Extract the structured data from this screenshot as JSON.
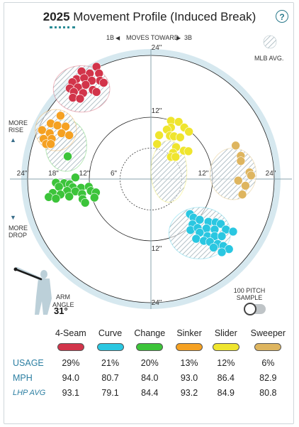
{
  "header": {
    "year": "2025",
    "title": "Movement Profile (Induced Break)",
    "help_symbol": "?"
  },
  "direction": {
    "left": "1B",
    "center": "MOVES TOWARD",
    "right": "3B",
    "left_arrow": "◀",
    "right_arrow": "▶"
  },
  "legend": {
    "mlb_avg": "MLB AVG."
  },
  "side_labels": {
    "rise_line1": "MORE",
    "rise_line2": "RISE",
    "rise_arrow": "▲",
    "drop_arrow": "▼",
    "drop_line1": "MORE",
    "drop_line2": "DROP"
  },
  "arm_angle": {
    "label_line1": "ARM",
    "label_line2": "ANGLE",
    "value": "31°"
  },
  "sample_toggle": {
    "label_line1": "100 PITCH",
    "label_line2": "SAMPLE",
    "on": false
  },
  "chart_data": {
    "type": "scatter",
    "rings": [
      6,
      12,
      24
    ],
    "ring_labels": {
      "top": [
        "24\"",
        "12\""
      ],
      "bottom": [
        "12\"",
        "24\""
      ],
      "left": [
        "24\"",
        "18\"",
        "12\"",
        "6\""
      ],
      "right": [
        "12\"",
        "24\""
      ]
    },
    "series": [
      {
        "name": "4-Seam",
        "color": "#d2344a",
        "mlb_avg": {
          "x": -13.5,
          "y": 17.5,
          "rx": 5.5,
          "ry": 4.5
        },
        "points": [
          [
            -10.6,
            21.8
          ],
          [
            -10.1,
            20.5
          ],
          [
            -11.9,
            20.5
          ],
          [
            -13.5,
            20.9
          ],
          [
            -14.5,
            19.4
          ],
          [
            -15.3,
            18.8
          ],
          [
            -13.0,
            19.6
          ],
          [
            -11.5,
            19.1
          ],
          [
            -9.9,
            19.1
          ],
          [
            -9.2,
            18.7
          ],
          [
            -12.7,
            18.3
          ],
          [
            -14.2,
            17.8
          ],
          [
            -15.8,
            17.6
          ],
          [
            -15.0,
            16.9
          ],
          [
            -13.2,
            16.7
          ],
          [
            -11.3,
            17.3
          ],
          [
            -10.6,
            16.9
          ],
          [
            -15.2,
            15.8
          ],
          [
            -13.8,
            15.6
          ]
        ]
      },
      {
        "name": "Curve",
        "color": "#2ac7e1",
        "mlb_avg": {
          "x": 9.5,
          "y": -10.5,
          "rx": 6,
          "ry": 5
        },
        "points": [
          [
            7.6,
            -6.8
          ],
          [
            8.3,
            -7.5
          ],
          [
            9.5,
            -7.9
          ],
          [
            8.1,
            -8.8
          ],
          [
            11.2,
            -8.3
          ],
          [
            12.6,
            -8.4
          ],
          [
            13.6,
            -8.7
          ],
          [
            7.7,
            -9.9
          ],
          [
            9.1,
            -9.5
          ],
          [
            10.8,
            -9.6
          ],
          [
            12.4,
            -9.8
          ],
          [
            14.6,
            -9.8
          ],
          [
            16.0,
            -10.2
          ],
          [
            9.5,
            -10.4
          ],
          [
            11.0,
            -11.1
          ],
          [
            12.4,
            -11.1
          ],
          [
            13.8,
            -11.1
          ],
          [
            8.8,
            -11.6
          ],
          [
            10.3,
            -12.0
          ],
          [
            11.5,
            -12.2
          ],
          [
            13.0,
            -12.6
          ],
          [
            14.1,
            -13.0
          ],
          [
            12.2,
            -13.3
          ],
          [
            15.2,
            -13.6
          ],
          [
            13.8,
            -14.2
          ]
        ]
      },
      {
        "name": "Change",
        "color": "#3cc43a",
        "mlb_avg": {
          "x": -16.5,
          "y": 6.5,
          "rx": 4,
          "ry": 5
        },
        "points": [
          [
            -16.2,
            4.4
          ],
          [
            -14.7,
            0.3
          ],
          [
            -18.5,
            -0.7
          ],
          [
            -16.9,
            -0.8
          ],
          [
            -15.8,
            -1.0
          ],
          [
            -17.9,
            -1.5
          ],
          [
            -15.2,
            -1.6
          ],
          [
            -13.6,
            -1.7
          ],
          [
            -12.1,
            -1.5
          ],
          [
            -11.7,
            -2.3
          ],
          [
            -16.3,
            -2.3
          ],
          [
            -14.7,
            -2.4
          ],
          [
            -19.1,
            -2.7
          ],
          [
            -17.6,
            -3.0
          ],
          [
            -10.7,
            -2.6
          ],
          [
            -13.4,
            -2.9
          ],
          [
            -15.9,
            -3.4
          ],
          [
            -19.9,
            -3.5
          ],
          [
            -18.5,
            -3.8
          ],
          [
            -13.3,
            -3.9
          ],
          [
            -11.0,
            -3.6
          ],
          [
            -12.8,
            -4.6
          ]
        ]
      },
      {
        "name": "Sinker",
        "color": "#f5a122",
        "mlb_avg": {
          "x": -18.5,
          "y": 9.5,
          "rx": 4,
          "ry": 4
        },
        "points": [
          [
            -17.6,
            12.3
          ],
          [
            -19.5,
            10.8
          ],
          [
            -18.2,
            10.4
          ],
          [
            -16.6,
            10.2
          ],
          [
            -21.2,
            9.5
          ],
          [
            -19.7,
            8.9
          ],
          [
            -17.4,
            8.9
          ],
          [
            -15.9,
            8.5
          ],
          [
            -20.9,
            7.8
          ],
          [
            -19.3,
            7.8
          ],
          [
            -20.4,
            6.8
          ],
          [
            -19.5,
            6.8
          ]
        ]
      },
      {
        "name": "Slider",
        "color": "#efe52e",
        "mlb_avg": {
          "x": 3.5,
          "y": 1.5,
          "rx": 3.5,
          "ry": 6
        },
        "points": [
          [
            3.9,
            11.3
          ],
          [
            5.4,
            11.1
          ],
          [
            3.9,
            10.0
          ],
          [
            3.1,
            9.6
          ],
          [
            6.5,
            10.0
          ],
          [
            7.4,
            9.2
          ],
          [
            1.6,
            8.5
          ],
          [
            3.7,
            8.4
          ],
          [
            4.5,
            8.3
          ],
          [
            5.7,
            8.1
          ],
          [
            1.2,
            6.8
          ],
          [
            4.9,
            6.2
          ],
          [
            4.3,
            5.1
          ],
          [
            6.4,
            5.5
          ],
          [
            7.3,
            5.4
          ],
          [
            3.9,
            4.3
          ],
          [
            4.8,
            4.3
          ]
        ]
      },
      {
        "name": "Sweeper",
        "color": "#deb55f",
        "mlb_avg": {
          "x": 16,
          "y": 1,
          "rx": 4.5,
          "ry": 5
        },
        "points": [
          [
            16.5,
            6.5
          ],
          [
            17.5,
            4.5
          ],
          [
            17.5,
            3.5
          ],
          [
            19.2,
            1.3
          ],
          [
            19.5,
            0.7
          ],
          [
            17.0,
            -0.3
          ],
          [
            18.4,
            -1.3
          ],
          [
            17.8,
            -3.0
          ]
        ]
      }
    ]
  },
  "stats": {
    "row_labels": {
      "usage": "USAGE",
      "mph": "MPH",
      "lhp_avg": "LHP AVG"
    },
    "pitches": [
      {
        "name": "4-Seam",
        "color": "#d2344a",
        "usage": "29%",
        "mph": "94.0",
        "lhp_avg": "93.1"
      },
      {
        "name": "Curve",
        "color": "#2ac7e1",
        "usage": "21%",
        "mph": "80.7",
        "lhp_avg": "79.1"
      },
      {
        "name": "Change",
        "color": "#3cc43a",
        "usage": "20%",
        "mph": "84.0",
        "lhp_avg": "84.4"
      },
      {
        "name": "Sinker",
        "color": "#f5a122",
        "usage": "13%",
        "mph": "93.0",
        "lhp_avg": "93.2"
      },
      {
        "name": "Slider",
        "color": "#efe52e",
        "usage": "12%",
        "mph": "86.4",
        "lhp_avg": "84.9"
      },
      {
        "name": "Sweeper",
        "color": "#deb55f",
        "usage": "6%",
        "mph": "82.9",
        "lhp_avg": "80.8"
      }
    ]
  }
}
